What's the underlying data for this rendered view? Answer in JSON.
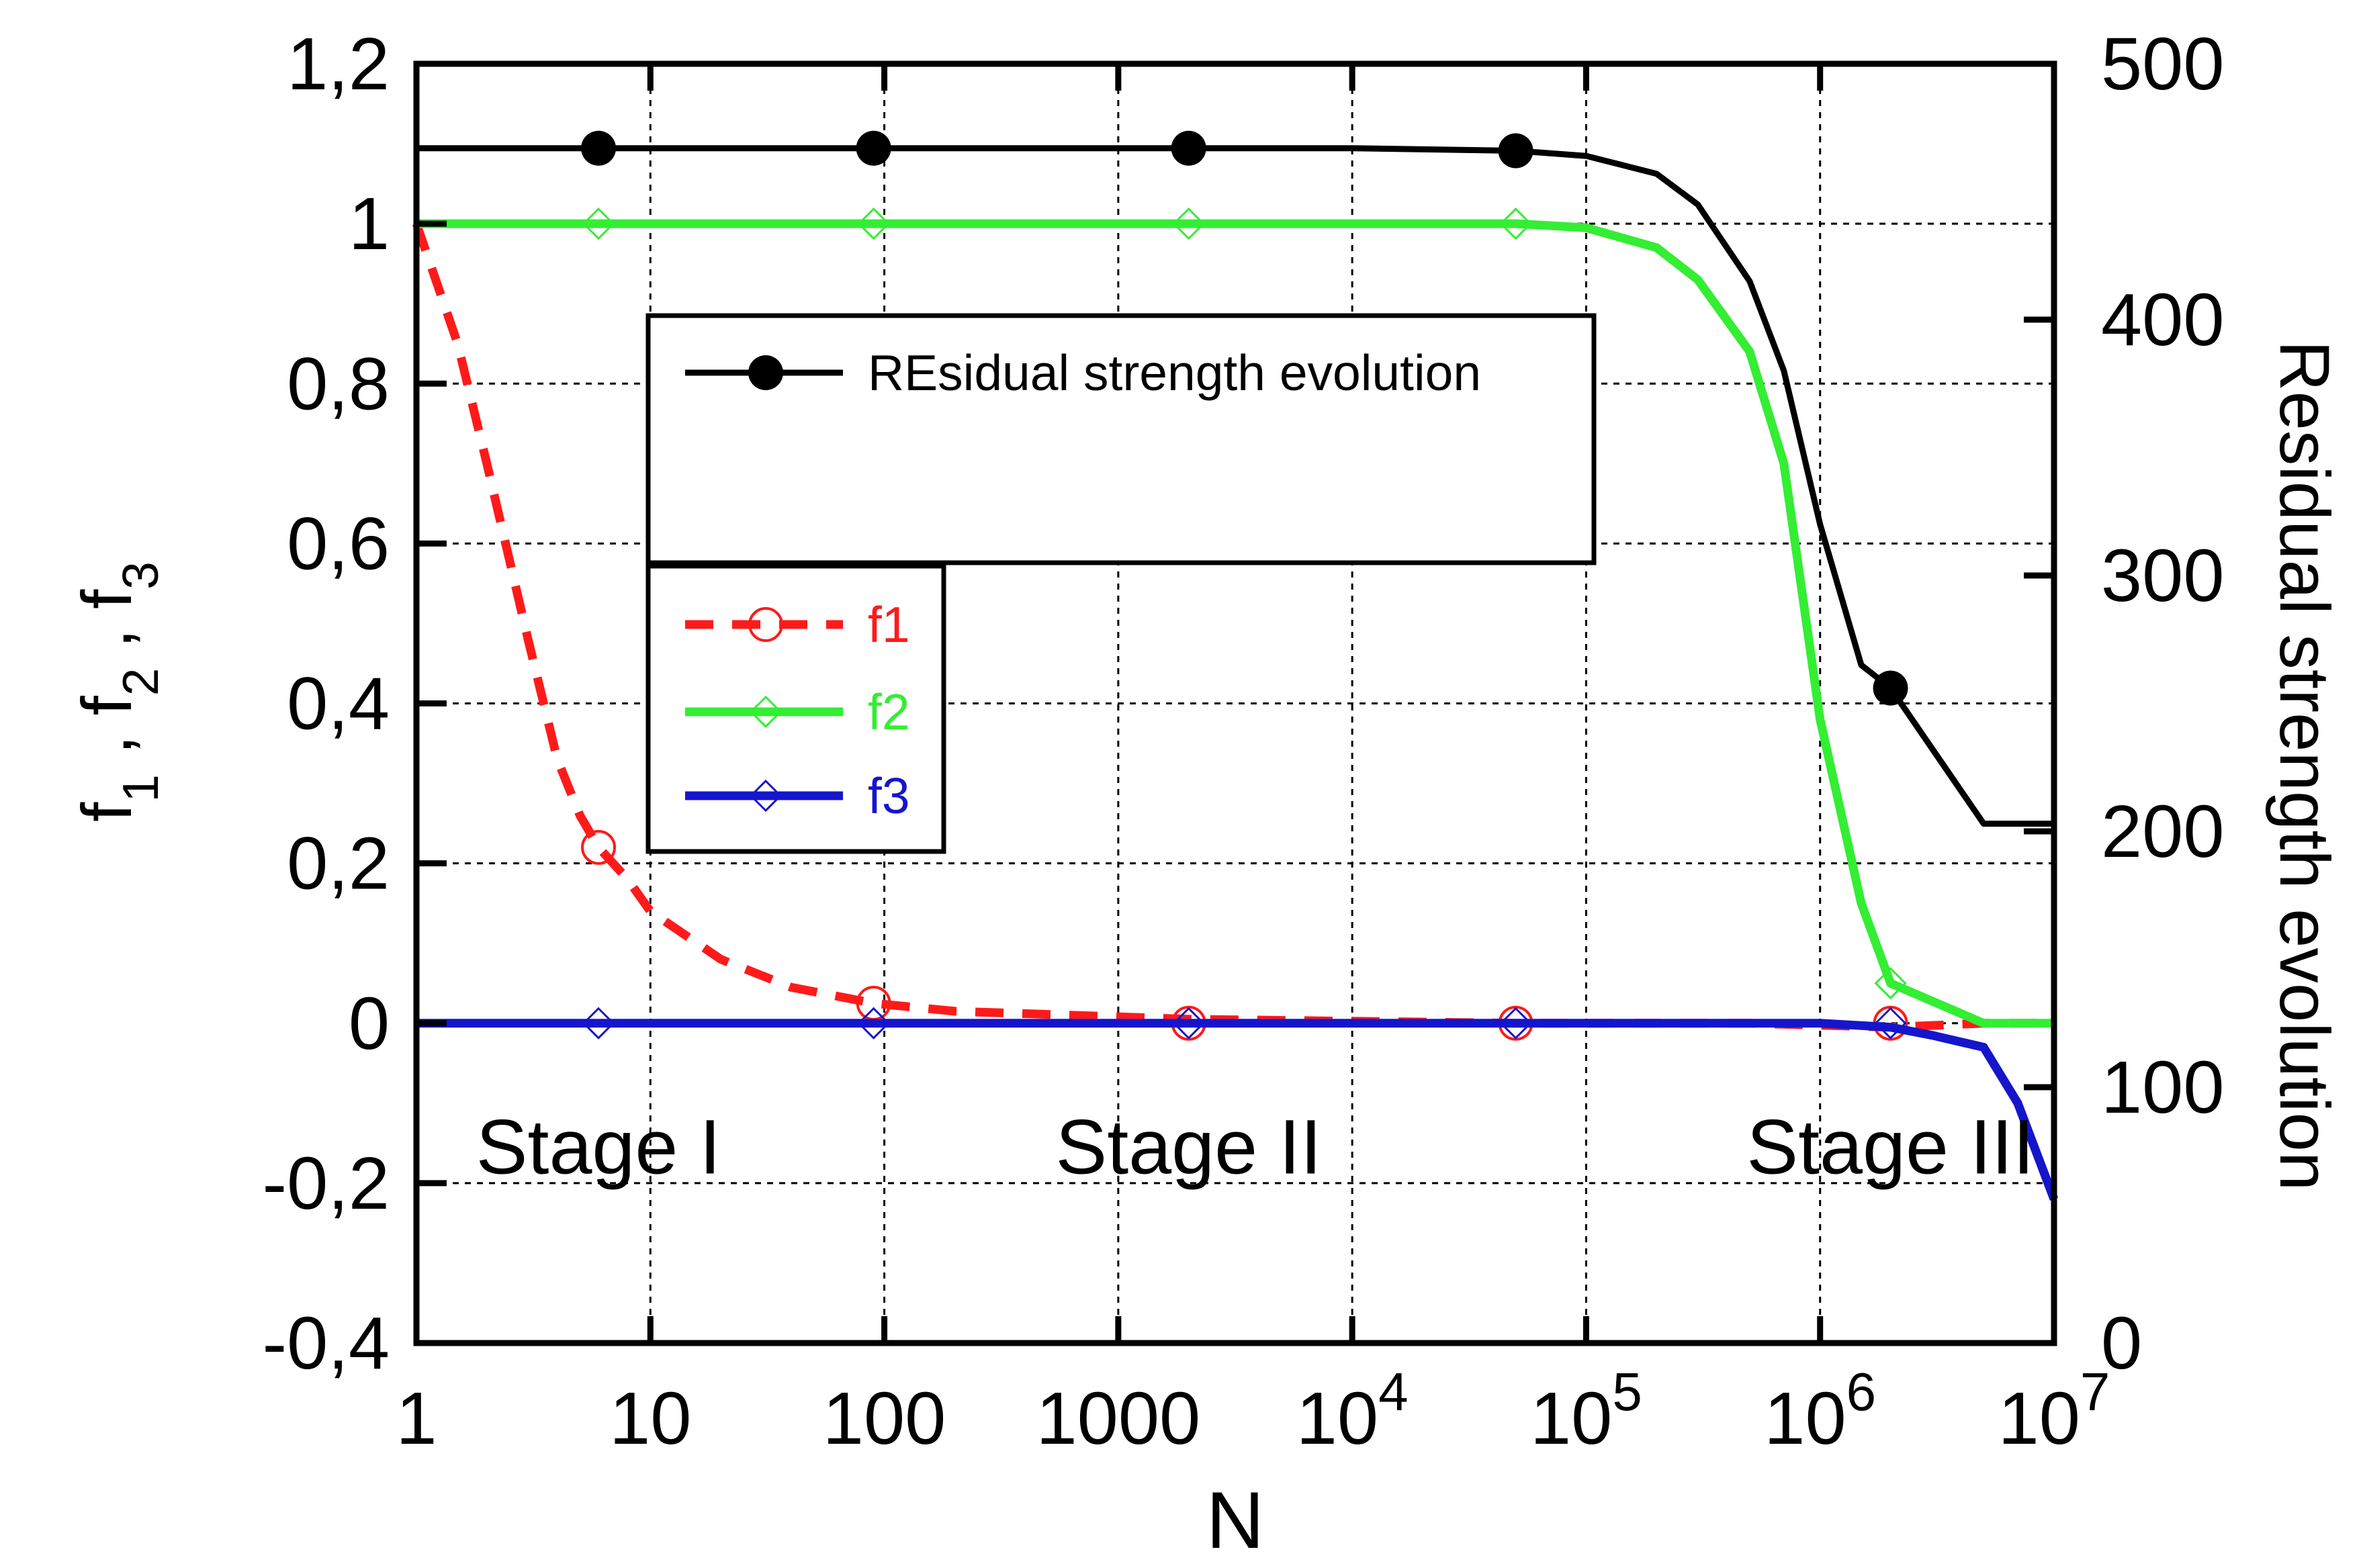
{
  "chart_data": {
    "type": "line",
    "xlabel": "N",
    "ylabel_left": "f1, f2, f3",
    "ylabel_right": "Residual strength evolution",
    "x_scale": "log",
    "xlim": [
      1,
      10000000
    ],
    "ylim_left": [
      -0.4,
      1.2
    ],
    "ylim_right": [
      0,
      500
    ],
    "x_ticks": [
      {
        "value": 1,
        "base": "1",
        "exp": ""
      },
      {
        "value": 10,
        "base": "10",
        "exp": ""
      },
      {
        "value": 100,
        "base": "100",
        "exp": ""
      },
      {
        "value": 1000,
        "base": "1000",
        "exp": ""
      },
      {
        "value": 10000,
        "base": "10",
        "exp": "4"
      },
      {
        "value": 100000,
        "base": "10",
        "exp": "5"
      },
      {
        "value": 1000000,
        "base": "10",
        "exp": "6"
      },
      {
        "value": 10000000,
        "base": "10",
        "exp": "7"
      }
    ],
    "y_ticks_left": [
      {
        "value": 1.2,
        "label": "1,2"
      },
      {
        "value": 1.0,
        "label": "1"
      },
      {
        "value": 0.8,
        "label": "0,8"
      },
      {
        "value": 0.6,
        "label": "0,6"
      },
      {
        "value": 0.4,
        "label": "0,4"
      },
      {
        "value": 0.2,
        "label": "0,2"
      },
      {
        "value": 0.0,
        "label": "0"
      },
      {
        "value": -0.2,
        "label": "-0,2"
      },
      {
        "value": -0.4,
        "label": "-0,4"
      }
    ],
    "y_ticks_right": [
      {
        "value": 500,
        "label": "500"
      },
      {
        "value": 400,
        "label": "400"
      },
      {
        "value": 300,
        "label": "300"
      },
      {
        "value": 200,
        "label": "200"
      },
      {
        "value": 100,
        "label": "100"
      },
      {
        "value": 0,
        "label": "0"
      }
    ],
    "grid": true,
    "annotations": [
      {
        "text": "Stage I",
        "x": 6,
        "y": -0.15
      },
      {
        "text": "Stage II",
        "x": 2000,
        "y": -0.15
      },
      {
        "text": "Stage III",
        "x": 2000000,
        "y": -0.15
      }
    ],
    "series": [
      {
        "name": "REsidual strength evolution",
        "axis": "right",
        "color": "#000000",
        "style": "solid",
        "marker": "filled-circle",
        "x": [
          1,
          6,
          90,
          2000,
          10000,
          50000,
          100000,
          200000,
          300000,
          500000,
          700000,
          1000000,
          1500000,
          2000000,
          5000000,
          10000000
        ],
        "y": [
          467,
          467,
          467,
          467,
          467,
          466,
          464,
          457,
          445,
          415,
          380,
          320,
          265,
          256,
          203,
          203
        ],
        "marker_x": [
          6,
          90,
          2000,
          50000,
          2000000
        ],
        "marker_y": [
          467,
          467,
          467,
          466,
          256
        ]
      },
      {
        "name": "f1",
        "axis": "left",
        "color": "#ff1a1a",
        "style": "dashed",
        "marker": "open-circle",
        "x": [
          1,
          1.5,
          2,
          3,
          4,
          5,
          6,
          8,
          10,
          20,
          40,
          90,
          200,
          2000,
          50000,
          500000,
          2000000,
          5000000,
          10000000
        ],
        "y": [
          1.0,
          0.85,
          0.7,
          0.48,
          0.33,
          0.26,
          0.22,
          0.18,
          0.14,
          0.08,
          0.045,
          0.025,
          0.015,
          0.005,
          0.0,
          0.0,
          -0.005,
          0.0,
          0.0
        ],
        "marker_x": [
          6,
          90,
          2000,
          50000,
          2000000
        ],
        "marker_y": [
          0.22,
          0.025,
          0.0,
          0.0,
          0.0
        ]
      },
      {
        "name": "f2",
        "axis": "left",
        "color": "#33ee33",
        "style": "solid",
        "marker": "open-diamond",
        "x": [
          1,
          6,
          90,
          2000,
          50000,
          100000,
          200000,
          300000,
          500000,
          700000,
          1000000,
          1500000,
          2000000,
          5000000,
          10000000
        ],
        "y": [
          1.0,
          1.0,
          1.0,
          1.0,
          1.0,
          0.995,
          0.97,
          0.93,
          0.84,
          0.7,
          0.38,
          0.15,
          0.05,
          0.0,
          0.0
        ],
        "marker_x": [
          6,
          90,
          2000,
          50000,
          2000000
        ],
        "marker_y": [
          1.0,
          1.0,
          1.0,
          1.0,
          0.05
        ]
      },
      {
        "name": "f3",
        "axis": "left",
        "color": "#1515cc",
        "style": "solid",
        "marker": "open-diamond",
        "x": [
          1,
          6,
          90,
          2000,
          50000,
          500000,
          1000000,
          2000000,
          3000000,
          5000000,
          7000000,
          10000000
        ],
        "y": [
          0.0,
          0.0,
          0.0,
          0.0,
          0.0,
          0.0,
          0.0,
          -0.005,
          -0.015,
          -0.03,
          -0.1,
          -0.22
        ],
        "marker_x": [
          6,
          90,
          2000,
          50000,
          2000000
        ],
        "marker_y": [
          0.0,
          0.0,
          0.0,
          0.0,
          0.0
        ]
      }
    ],
    "legend": {
      "placement": "inside-upper-left",
      "top_box": [
        "REsidual strength evolution"
      ],
      "bottom_box": [
        "f1",
        "f2",
        "f3"
      ]
    }
  }
}
